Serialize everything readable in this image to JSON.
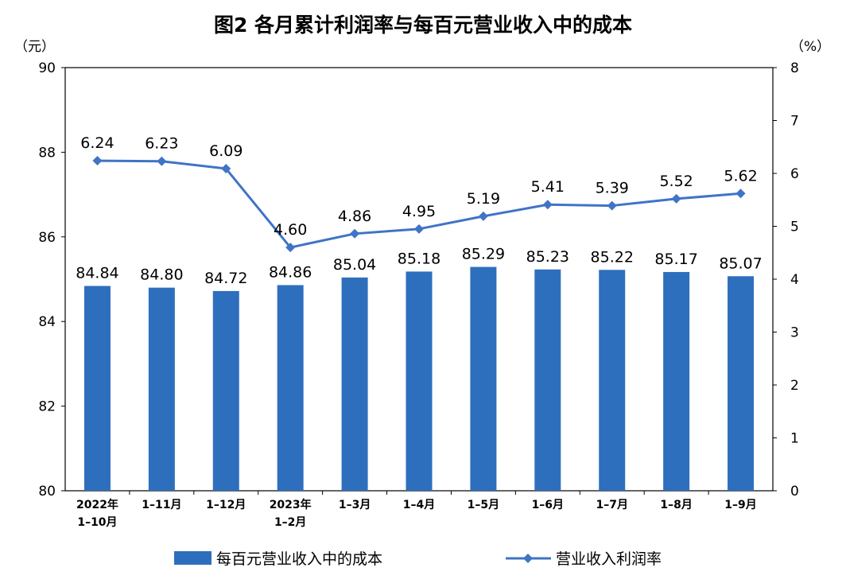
{
  "chart_data": {
    "type": "bar+line",
    "title": "图2  各月累计利润率与每百元营业收入中的成本",
    "left_axis_unit": "（元）",
    "right_axis_unit": "（%）",
    "categories": [
      [
        "2022年",
        "1–10月"
      ],
      [
        "1–11月"
      ],
      [
        "1–12月"
      ],
      [
        "2023年",
        "1–2月"
      ],
      [
        "1–3月"
      ],
      [
        "1–4月"
      ],
      [
        "1–5月"
      ],
      [
        "1–6月"
      ],
      [
        "1–7月"
      ],
      [
        "1–8月"
      ],
      [
        "1–9月"
      ]
    ],
    "y_left": {
      "min": 80,
      "max": 90,
      "ticks": [
        "80",
        "82",
        "84",
        "86",
        "88",
        "90"
      ]
    },
    "y_right": {
      "min": 0,
      "max": 8,
      "ticks": [
        "0",
        "1",
        "2",
        "3",
        "4",
        "5",
        "6",
        "7",
        "8"
      ]
    },
    "series": [
      {
        "name": "每百元营业收入中的成本",
        "type": "bar",
        "axis": "left",
        "color": "#2e6fbd",
        "values": [
          84.84,
          84.8,
          84.72,
          84.86,
          85.04,
          85.18,
          85.29,
          85.23,
          85.22,
          85.17,
          85.07
        ],
        "labels": [
          "84.84",
          "84.80",
          "84.72",
          "84.86",
          "85.04",
          "85.18",
          "85.29",
          "85.23",
          "85.22",
          "85.17",
          "85.07"
        ]
      },
      {
        "name": "营业收入利润率",
        "type": "line",
        "axis": "right",
        "color": "#3f74c6",
        "values": [
          6.24,
          6.23,
          6.09,
          4.6,
          4.86,
          4.95,
          5.19,
          5.41,
          5.39,
          5.52,
          5.62
        ],
        "labels": [
          "6.24",
          "6.23",
          "6.09",
          "4.60",
          "4.86",
          "4.95",
          "5.19",
          "5.41",
          "5.39",
          "5.52",
          "5.62"
        ]
      }
    ],
    "legend_position": "bottom",
    "grid": false
  }
}
